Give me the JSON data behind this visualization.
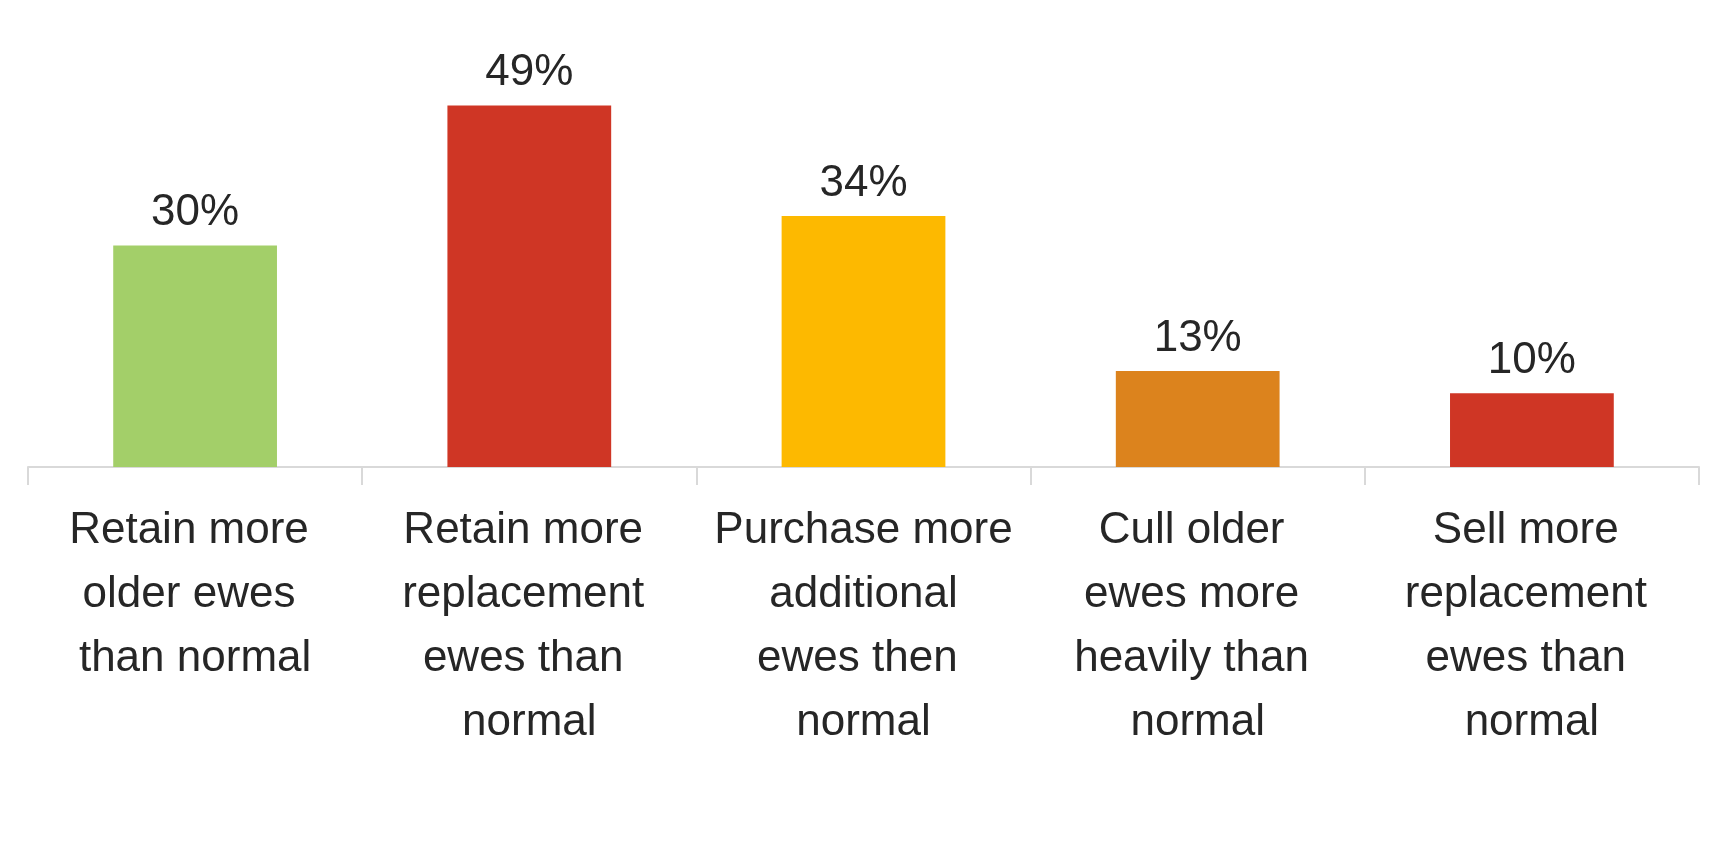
{
  "chart_data": {
    "type": "bar",
    "categories": [
      "Retain more older ewes than normal",
      "Retain more replacement ewes than normal",
      "Purchase more additional ewes then normal",
      "Cull older ewes more heavily than normal",
      "Sell more replacement ewes than normal"
    ],
    "values": [
      30,
      49,
      34,
      13,
      10
    ],
    "colors": [
      "#a3cf69",
      "#cf3625",
      "#fdb900",
      "#dc831d",
      "#cf3625"
    ],
    "value_labels": [
      "30%",
      "49%",
      "34%",
      "13%",
      "10%"
    ]
  }
}
